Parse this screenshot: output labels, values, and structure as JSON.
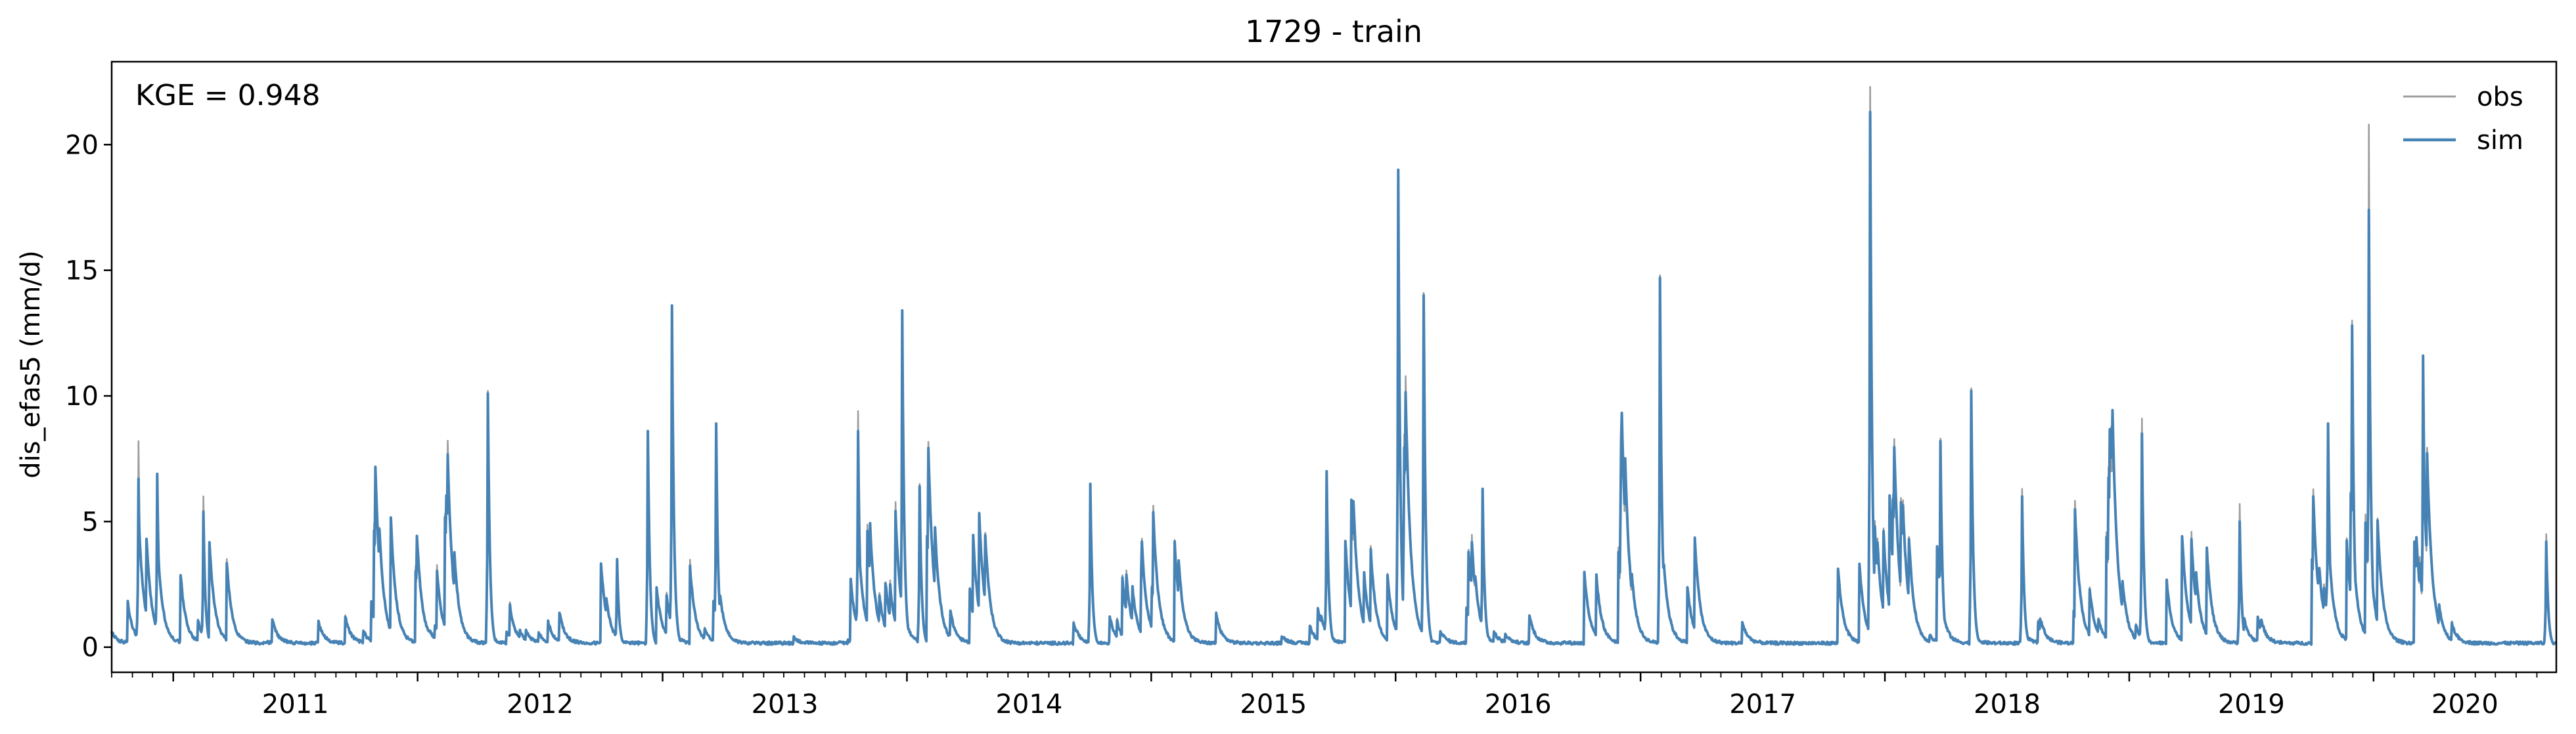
{
  "chart_data": {
    "type": "line",
    "title": "1729 - train",
    "xlabel": "",
    "ylabel": "dis_efas5 (mm/d)",
    "xlim": [
      "2010-10-01",
      "2020-09-30"
    ],
    "ylim": [
      -1,
      23.3
    ],
    "yticks": [
      0,
      5,
      10,
      15,
      20
    ],
    "xticks": [
      "2011",
      "2012",
      "2013",
      "2014",
      "2015",
      "2016",
      "2017",
      "2018",
      "2019",
      "2020"
    ],
    "grid": false,
    "legend_position": "top-right",
    "annotation": "KGE = 0.948",
    "series": [
      {
        "name": "obs",
        "color": "#9e9e9e",
        "peaks": [
          [
            "2010-11-10",
            8.2
          ],
          [
            "2010-12-08",
            6.6
          ],
          [
            "2011-02-15",
            6.0
          ],
          [
            "2011-10-30",
            4.8
          ],
          [
            "2012-04-15",
            10.2
          ],
          [
            "2012-10-25",
            3.5
          ],
          [
            "2012-12-10",
            8.5
          ],
          [
            "2013-01-15",
            13.6
          ],
          [
            "2013-03-22",
            8.9
          ],
          [
            "2013-10-20",
            9.4
          ],
          [
            "2013-12-25",
            13.3
          ],
          [
            "2014-01-20",
            6.5
          ],
          [
            "2014-10-02",
            6.5
          ],
          [
            "2015-09-20",
            7.0
          ],
          [
            "2016-01-05",
            18.6
          ],
          [
            "2016-02-12",
            14.1
          ],
          [
            "2016-05-10",
            6.2
          ],
          [
            "2017-01-30",
            14.8
          ],
          [
            "2017-12-10",
            22.3
          ],
          [
            "2018-03-25",
            8.3
          ],
          [
            "2018-05-10",
            10.3
          ],
          [
            "2018-07-25",
            6.3
          ],
          [
            "2019-01-20",
            9.1
          ],
          [
            "2019-06-15",
            5.7
          ],
          [
            "2019-10-25",
            8.8
          ],
          [
            "2019-11-30",
            13.0
          ],
          [
            "2019-12-25",
            20.8
          ],
          [
            "2020-03-15",
            11.5
          ],
          [
            "2020-09-15",
            4.5
          ]
        ]
      },
      {
        "name": "sim",
        "color": "#4682b4",
        "peaks": [
          [
            "2010-11-10",
            6.7
          ],
          [
            "2010-12-08",
            6.9
          ],
          [
            "2011-02-15",
            5.4
          ],
          [
            "2011-10-30",
            4.1
          ],
          [
            "2012-04-15",
            10.1
          ],
          [
            "2012-10-25",
            3.5
          ],
          [
            "2012-12-10",
            8.6
          ],
          [
            "2013-01-15",
            13.6
          ],
          [
            "2013-03-22",
            8.9
          ],
          [
            "2013-10-20",
            8.6
          ],
          [
            "2013-12-25",
            13.4
          ],
          [
            "2014-01-20",
            6.4
          ],
          [
            "2014-10-02",
            6.5
          ],
          [
            "2015-09-20",
            7.0
          ],
          [
            "2016-01-05",
            19.0
          ],
          [
            "2016-02-12",
            14.0
          ],
          [
            "2016-05-10",
            6.3
          ],
          [
            "2017-01-30",
            14.7
          ],
          [
            "2017-12-10",
            21.3
          ],
          [
            "2018-03-25",
            8.2
          ],
          [
            "2018-05-10",
            10.2
          ],
          [
            "2018-07-25",
            6.0
          ],
          [
            "2019-01-20",
            8.5
          ],
          [
            "2019-06-15",
            5.0
          ],
          [
            "2019-10-25",
            8.9
          ],
          [
            "2019-11-30",
            12.8
          ],
          [
            "2019-12-25",
            17.4
          ],
          [
            "2020-03-15",
            11.6
          ],
          [
            "2020-09-15",
            4.2
          ]
        ]
      }
    ]
  }
}
